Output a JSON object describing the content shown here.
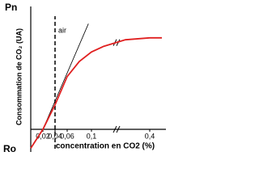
{
  "chart_data": {
    "type": "line",
    "y_top_label": "Pn",
    "y_bottom_label": "Ro",
    "y_label": "Consommation de CO₂ (UA)",
    "x_label": "concentration en CO2 (%)",
    "x": [
      0,
      0.02,
      0.04,
      0.06,
      0.08,
      0.1,
      0.12,
      0.3,
      0.4,
      0.45
    ],
    "series": [
      {
        "color": "#e02020",
        "values": [
          -1,
          0,
          1.3,
          2.8,
          3.6,
          4.1,
          4.4,
          4.75,
          4.85,
          4.85
        ]
      }
    ],
    "tangent_x": [
      0.02,
      0.095
    ],
    "tangent_y": [
      0,
      5.6
    ],
    "tangent_color": "#000000",
    "annotations": [
      {
        "x": 0.04,
        "text": "air"
      }
    ],
    "xlim": [
      0,
      0.45
    ],
    "ylim": [
      -1.2,
      6
    ],
    "axis_break": true,
    "xticks": [
      {
        "value": 0.02,
        "label": "0,02"
      },
      {
        "value": 0.04,
        "label": "0,04"
      },
      {
        "value": 0.06,
        "label": "0,06"
      },
      {
        "value": 0.1,
        "label": "0,1"
      },
      {
        "value": 0.4,
        "label": "0,4"
      }
    ]
  }
}
